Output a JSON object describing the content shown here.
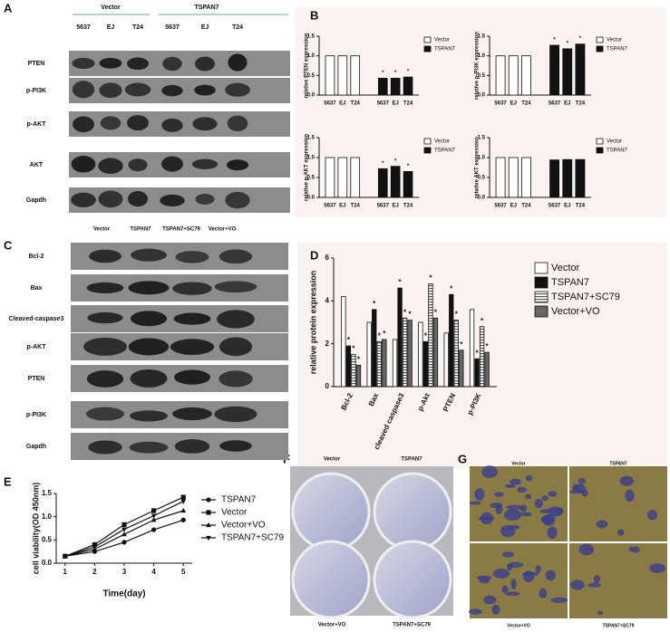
{
  "panel_labels": [
    "A",
    "B",
    "C",
    "D",
    "E",
    "F",
    "G"
  ],
  "blot_a": {
    "groups": [
      "Vector",
      "TSPAN7"
    ],
    "lanes": [
      "5637",
      "EJ",
      "T24",
      "5637",
      "EJ",
      "T24"
    ],
    "rows": [
      "PTEN",
      "p-PI3K",
      "p-AKT",
      "AKT",
      "Gapdh"
    ]
  },
  "blot_c": {
    "lanes": [
      "Vector",
      "TSPAN7",
      "TSPAN7+SC79",
      "Vector+VO"
    ],
    "rows": [
      "Bcl-2",
      "Bax",
      "Cleaved-caspase3",
      "p-AKT",
      "PTEN",
      "p-PI3K",
      "Gapdh"
    ]
  },
  "colony_f": {
    "labels": [
      "Vector",
      "TSPAN7",
      "Vector+VO",
      "TSPAN7+SC79"
    ]
  },
  "transwell_g": {
    "labels": [
      "Vector",
      "TSPAN7",
      "Vector+VO",
      "TSPAN7+SC79"
    ]
  },
  "chart_data": [
    {
      "type": "bar",
      "ylabel": "relative PTEN expression",
      "categories": [
        "5637",
        "EJ",
        "T24",
        "5637",
        "EJ",
        "T24"
      ],
      "series": [
        {
          "name": "Vector",
          "color": "#ffffff",
          "values": [
            1.0,
            1.0,
            1.0,
            null,
            null,
            null
          ]
        },
        {
          "name": "TSPAN7",
          "color": "#111111",
          "values": [
            null,
            null,
            null,
            0.43,
            0.43,
            0.46
          ],
          "starred": true
        }
      ],
      "significance_mark": "*",
      "ylim": [
        0,
        1.5
      ],
      "yticks": [
        {
          "value": 0,
          "label": "0.0"
        },
        0.5,
        {
          "value": 1,
          "label": "1.0"
        },
        1.5
      ]
    },
    {
      "type": "bar",
      "ylabel": "relative p-PI3K expression",
      "categories": [
        "5637",
        "EJ",
        "T24",
        "5637",
        "EJ",
        "T24"
      ],
      "series": [
        {
          "name": "Vector",
          "color": "#ffffff",
          "values": [
            1.0,
            1.0,
            1.0,
            null,
            null,
            null
          ]
        },
        {
          "name": "TSPAN7",
          "color": "#111111",
          "values": [
            null,
            null,
            null,
            1.27,
            1.18,
            1.3
          ],
          "starred": true
        }
      ],
      "significance_mark": "*",
      "ylim": [
        0,
        1.5
      ],
      "yticks": [
        {
          "value": 0,
          "label": "0.0"
        },
        0.5,
        {
          "value": 1,
          "label": "1.0"
        },
        1.5
      ]
    },
    {
      "type": "bar",
      "ylabel": "relative p-AKT expression",
      "categories": [
        "5637",
        "EJ",
        "T24",
        "5637",
        "EJ",
        "T24"
      ],
      "series": [
        {
          "name": "Vector",
          "color": "#ffffff",
          "values": [
            1.0,
            1.0,
            1.0,
            null,
            null,
            null
          ]
        },
        {
          "name": "TSPAN7",
          "color": "#111111",
          "values": [
            null,
            null,
            null,
            0.72,
            0.78,
            0.65
          ],
          "starred": true
        }
      ],
      "significance_mark": "*",
      "ylim": [
        0,
        1.5
      ],
      "yticks": [
        {
          "value": 0,
          "label": "0.0"
        },
        0.5,
        {
          "value": 1,
          "label": "1.0"
        },
        1.5
      ]
    },
    {
      "type": "bar",
      "ylabel": "relative AKT expression",
      "categories": [
        "5637",
        "EJ",
        "T24",
        "5637",
        "EJ",
        "T24"
      ],
      "series": [
        {
          "name": "Vector",
          "color": "#ffffff",
          "values": [
            1.0,
            1.0,
            1.0,
            null,
            null,
            null
          ]
        },
        {
          "name": "TSPAN7",
          "color": "#111111",
          "values": [
            null,
            null,
            null,
            0.94,
            0.95,
            0.95
          ]
        }
      ],
      "ylim": [
        0,
        1.5
      ],
      "yticks": [
        {
          "value": 0,
          "label": "0.0"
        },
        0.5,
        {
          "value": 1,
          "label": "1.0"
        },
        1.5
      ]
    },
    {
      "type": "bar",
      "ylabel": "relative protein expression",
      "categories": [
        "Bcl-2",
        "Bax",
        "cleaved caspase3",
        "p-Akt",
        "PTEN",
        "p-PI3K"
      ],
      "series": [
        {
          "name": "Vector",
          "color": "#ffffff",
          "values": [
            4.2,
            3.0,
            2.2,
            3.0,
            2.5,
            3.6
          ]
        },
        {
          "name": "TSPAN7",
          "color": "#111111",
          "values": [
            1.9,
            3.6,
            4.6,
            2.1,
            4.3,
            1.3
          ],
          "starred": true
        },
        {
          "name": "TSPAN7+SC79",
          "color": "#ffffff",
          "pattern": "horizontal-stripes",
          "values": [
            1.5,
            2.1,
            3.2,
            4.8,
            3.1,
            2.8
          ],
          "starred": true
        },
        {
          "name": "Vector+VO",
          "color": "#666666",
          "values": [
            1.0,
            2.2,
            3.1,
            3.2,
            1.7,
            1.6
          ],
          "starred": true
        }
      ],
      "significance_mark": "*",
      "ylim": [
        0,
        6
      ],
      "yticks": [
        0,
        2,
        4,
        6
      ]
    },
    {
      "type": "line",
      "xlabel": "Time(day)",
      "ylabel": "cell viability(OD 450nm)",
      "x": [
        1,
        2,
        3,
        4,
        5
      ],
      "series": [
        {
          "name": "TSPAN7",
          "color": "#111111",
          "marker": "circle",
          "values": [
            0.15,
            0.25,
            0.45,
            0.72,
            0.93
          ]
        },
        {
          "name": "Vector",
          "color": "#111111",
          "marker": "square",
          "values": [
            0.15,
            0.4,
            0.83,
            1.13,
            1.42
          ]
        },
        {
          "name": "Vector+VO",
          "color": "#111111",
          "marker": "triangle",
          "values": [
            0.15,
            0.3,
            0.62,
            0.93,
            1.13
          ]
        },
        {
          "name": "TSPAN7+SC79",
          "color": "#111111",
          "marker": "triangle-down",
          "values": [
            0.15,
            0.35,
            0.73,
            1.02,
            1.33
          ]
        }
      ],
      "xlim": [
        0.7,
        5.3
      ],
      "xticks": [
        1,
        2,
        3,
        4,
        5
      ],
      "ylim": [
        0,
        1.5
      ],
      "yticks": [
        {
          "value": 0,
          "label": "0.0"
        },
        0.5,
        {
          "value": 1,
          "label": "1.0"
        },
        1.5
      ]
    }
  ]
}
